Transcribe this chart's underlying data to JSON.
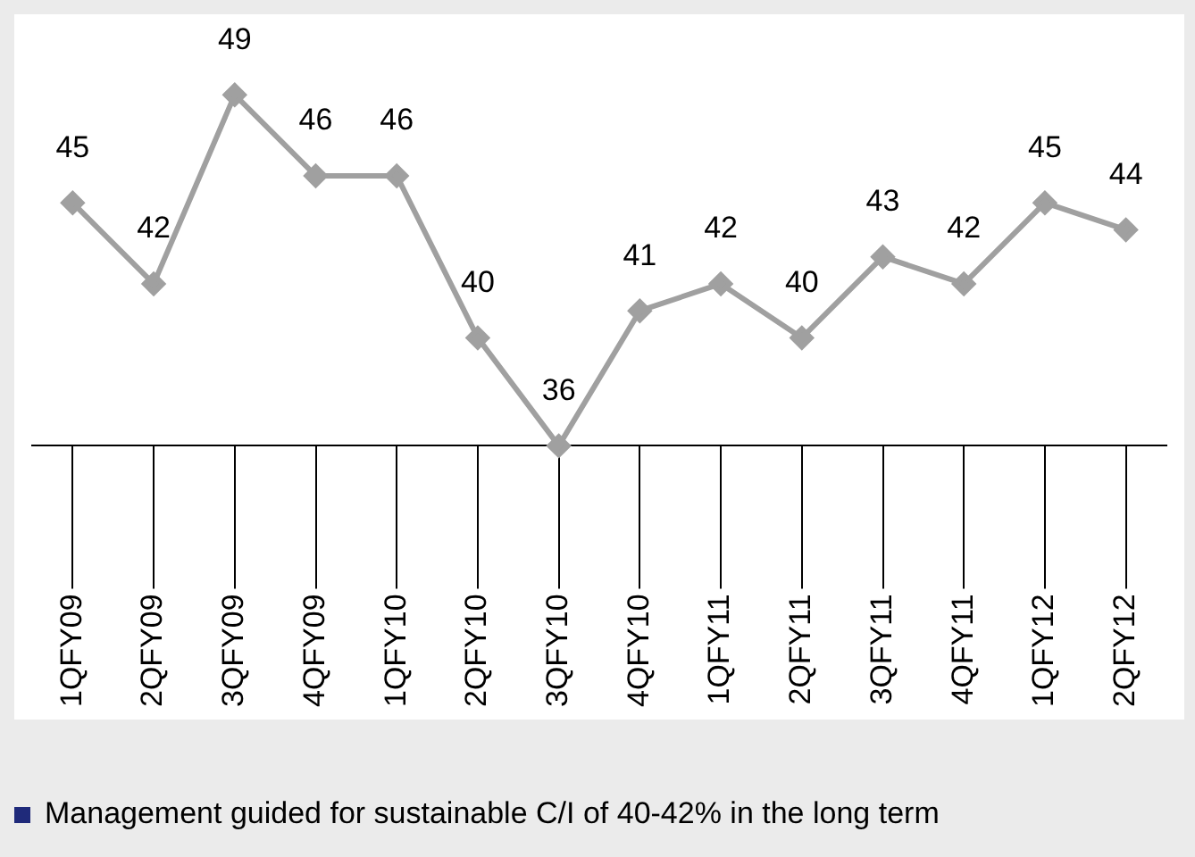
{
  "chart_data": {
    "type": "line",
    "categories": [
      "1QFY09",
      "2QFY09",
      "3QFY09",
      "4QFY09",
      "1QFY10",
      "2QFY10",
      "3QFY10",
      "4QFY10",
      "1QFY11",
      "2QFY11",
      "3QFY11",
      "4QFY11",
      "1QFY12",
      "2QFY12"
    ],
    "series": [
      {
        "color": "#a0a0a0",
        "values": [
          45,
          42,
          49,
          46,
          46,
          40,
          36,
          41,
          42,
          40,
          43,
          42,
          45,
          44
        ]
      }
    ],
    "data_labels": true,
    "marker": "diamond",
    "grid": false,
    "legend": false,
    "tick_labels": "x",
    "annotations": [
      "Management guided for sustainable C/I of 40-42% in the long term"
    ]
  }
}
